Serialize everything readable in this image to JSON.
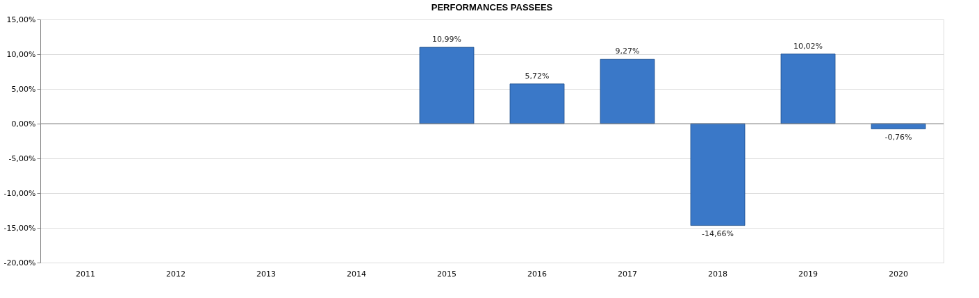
{
  "chart_data": {
    "type": "bar",
    "title": "PERFORMANCES PASSEES",
    "categories": [
      "2011",
      "2012",
      "2013",
      "2014",
      "2015",
      "2016",
      "2017",
      "2018",
      "2019",
      "2020"
    ],
    "values": [
      null,
      null,
      null,
      null,
      10.99,
      5.72,
      9.27,
      -14.66,
      10.02,
      -0.76
    ],
    "value_labels": [
      null,
      null,
      null,
      null,
      "10,99%",
      "5,72%",
      "9,27%",
      "-14,66%",
      "10,02%",
      "-0,76%"
    ],
    "color": "#3a78c8",
    "ylim": [
      -20,
      15
    ],
    "yticks": [
      {
        "value": -20,
        "label": "-20,00%"
      },
      {
        "value": -15,
        "label": "-15,00%"
      },
      {
        "value": -10,
        "label": "-10,00%"
      },
      {
        "value": -5,
        "label": "-5,00%"
      },
      {
        "value": 0,
        "label": "0,00%"
      },
      {
        "value": 5,
        "label": "5,00%"
      },
      {
        "value": 10,
        "label": "10,00%"
      },
      {
        "value": 15,
        "label": "15,00%"
      }
    ],
    "grid": "y"
  }
}
